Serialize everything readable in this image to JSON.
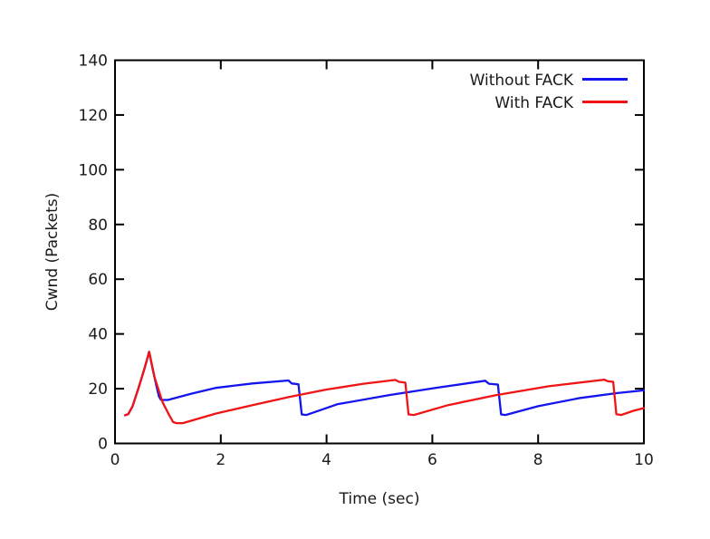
{
  "chart_data": {
    "type": "line",
    "title": "",
    "xlabel": "Time (sec)",
    "ylabel": "Cwnd (Packets)",
    "xlim": [
      0,
      10
    ],
    "ylim": [
      0,
      140
    ],
    "xticks": [
      0,
      2,
      4,
      6,
      8,
      10
    ],
    "yticks": [
      0,
      20,
      40,
      60,
      80,
      100,
      120,
      140
    ],
    "grid": false,
    "legend_position": "top-right-inside",
    "frame_color": "#000000",
    "text_color": "#1a1a1a",
    "series": [
      {
        "name": "Without FACK",
        "color": "#1414f0",
        "points": [
          [
            0.19,
            10.3
          ],
          [
            0.25,
            10.7
          ],
          [
            0.33,
            13.5
          ],
          [
            0.44,
            20.0
          ],
          [
            0.56,
            27.5
          ],
          [
            0.645,
            33.5
          ],
          [
            0.72,
            26.5
          ],
          [
            0.79,
            20.5
          ],
          [
            0.83,
            17.2
          ],
          [
            0.87,
            15.9
          ],
          [
            1.0,
            15.9
          ],
          [
            1.45,
            18.2
          ],
          [
            1.9,
            20.3
          ],
          [
            2.6,
            21.9
          ],
          [
            3.28,
            23.0
          ],
          [
            3.34,
            21.9
          ],
          [
            3.47,
            21.6
          ],
          [
            3.53,
            10.6
          ],
          [
            3.62,
            10.4
          ],
          [
            4.2,
            14.3
          ],
          [
            5.2,
            17.7
          ],
          [
            6.1,
            20.4
          ],
          [
            7.0,
            22.9
          ],
          [
            7.07,
            21.8
          ],
          [
            7.24,
            21.5
          ],
          [
            7.3,
            10.6
          ],
          [
            7.38,
            10.4
          ],
          [
            8.0,
            13.6
          ],
          [
            8.8,
            16.6
          ],
          [
            9.5,
            18.4
          ],
          [
            10,
            19.4
          ]
        ]
      },
      {
        "name": "With FACK",
        "color": "#f01414",
        "points": [
          [
            0.19,
            10.3
          ],
          [
            0.25,
            10.7
          ],
          [
            0.33,
            13.5
          ],
          [
            0.44,
            20.0
          ],
          [
            0.56,
            27.5
          ],
          [
            0.645,
            33.5
          ],
          [
            0.75,
            24.0
          ],
          [
            0.9,
            15.0
          ],
          [
            1.02,
            10.5
          ],
          [
            1.1,
            7.8
          ],
          [
            1.16,
            7.4
          ],
          [
            1.28,
            7.4
          ],
          [
            1.9,
            10.9
          ],
          [
            2.6,
            14.0
          ],
          [
            3.3,
            17.0
          ],
          [
            4.0,
            19.7
          ],
          [
            4.7,
            21.8
          ],
          [
            5.3,
            23.2
          ],
          [
            5.37,
            22.5
          ],
          [
            5.49,
            22.2
          ],
          [
            5.55,
            10.6
          ],
          [
            5.65,
            10.4
          ],
          [
            6.3,
            14.0
          ],
          [
            7.2,
            17.6
          ],
          [
            8.2,
            20.9
          ],
          [
            9.25,
            23.3
          ],
          [
            9.32,
            22.7
          ],
          [
            9.42,
            22.5
          ],
          [
            9.48,
            10.7
          ],
          [
            9.57,
            10.4
          ],
          [
            9.8,
            11.9
          ],
          [
            10,
            12.9
          ]
        ]
      }
    ]
  }
}
